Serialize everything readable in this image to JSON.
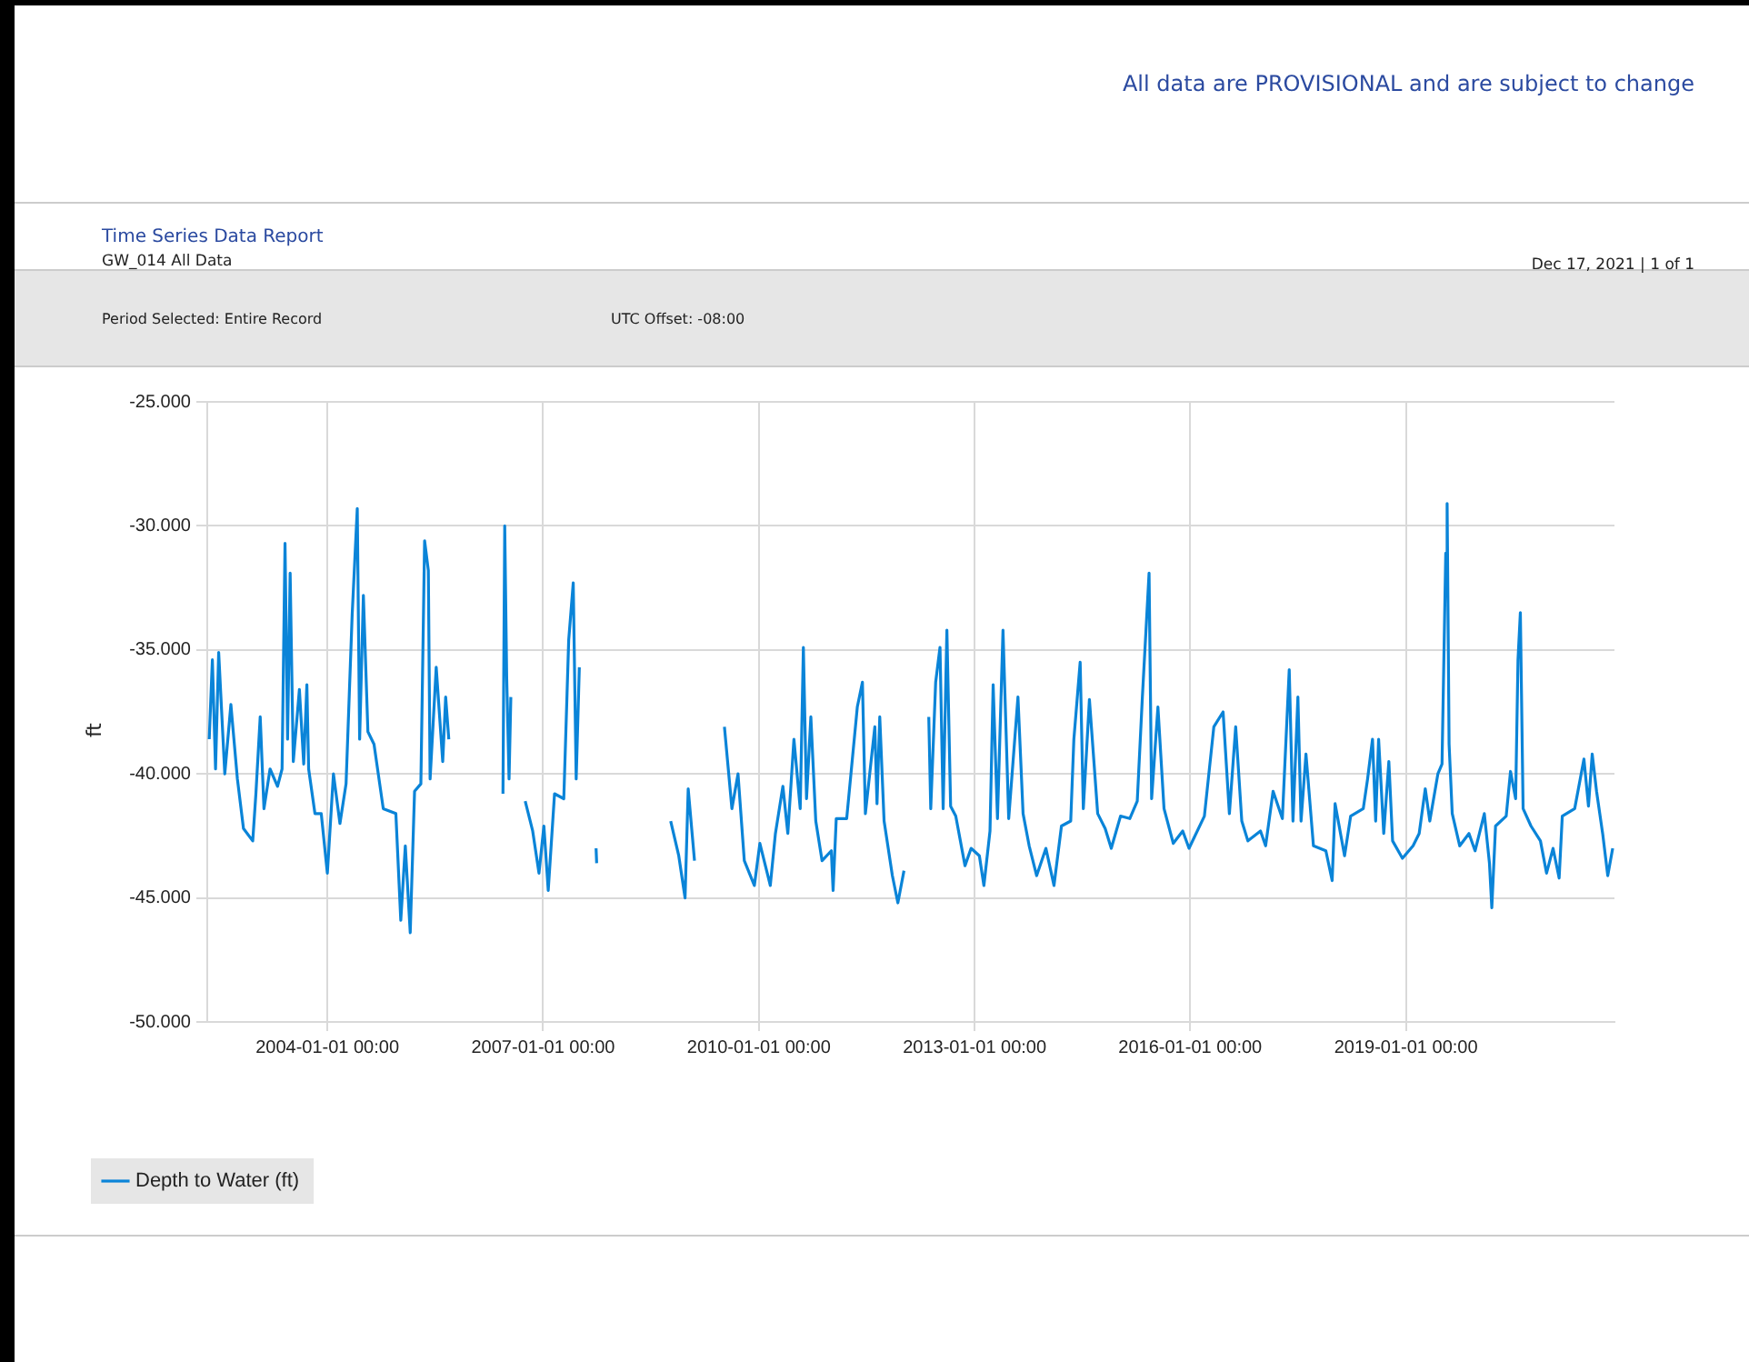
{
  "chart_data": {
    "type": "line",
    "title": "Time Series Data Report",
    "subtitle": "GW_014 All Data",
    "ylabel": "ft",
    "annotations": [
      "All data are PROVISIONAL and are subject to change",
      "Dec 17, 2021 | 1 of 1",
      "Period Selected: Entire Record",
      "UTC Offset: -08:00"
    ],
    "x": [
      "2002-05-11",
      "2002-05-27",
      "2002-06-12",
      "2002-06-28",
      "2002-07-29",
      "2002-08-29",
      "2002-10-01",
      "2002-11-01",
      "2002-12-18",
      "2003-01-03",
      "2003-01-25",
      "2003-02-13",
      "2003-03-16",
      "2003-04-23",
      "2003-05-16",
      "2003-05-31",
      "2003-06-13",
      "2003-06-26",
      "2003-07-12",
      "2003-08-12",
      "2003-09-03",
      "2003-09-19",
      "2003-09-28",
      "2003-10-30",
      "2003-12-01",
      "2004-01-01",
      "2004-02-01",
      "2004-03-05",
      "2004-04-05",
      "2004-05-06",
      "2004-06-01",
      "2004-06-13",
      "2004-07-02",
      "2004-07-25",
      "2004-08-25",
      "2004-10-11",
      "2004-12-14",
      "2005-01-08",
      "2005-01-31",
      "2005-02-25",
      "2005-03-19",
      "2005-04-20",
      "2005-05-09",
      "2005-05-28",
      "2005-06-06",
      "2005-07-07",
      "2005-08-09",
      "2005-08-24",
      "2005-09-09",
      "2006-01-01",
      "2006-06-11",
      "2006-06-20",
      "2006-06-30",
      "2006-07-12",
      "2006-07-21",
      "2006-08-20",
      "2006-10-02",
      "2006-11-09",
      "2006-12-11",
      "2007-01-05",
      "2007-01-27",
      "2007-02-28",
      "2007-04-16",
      "2007-05-11",
      "2007-06-03",
      "2007-06-18",
      "2007-07-04",
      "2007-08-15",
      "2007-09-27",
      "2007-09-30",
      "2008-03-01",
      "2008-10-10",
      "2008-11-20",
      "2008-12-22",
      "2009-01-07",
      "2009-02-08",
      "2009-04-15",
      "2009-07-10",
      "2009-08-17",
      "2009-09-17",
      "2009-10-19",
      "2009-12-09",
      "2010-01-06",
      "2010-02-28",
      "2010-03-26",
      "2010-05-03",
      "2010-05-28",
      "2010-06-28",
      "2010-07-30",
      "2010-08-15",
      "2010-08-31",
      "2010-09-22",
      "2010-10-17",
      "2010-11-18",
      "2011-01-04",
      "2011-01-13",
      "2011-01-29",
      "2011-03-23",
      "2011-05-16",
      "2011-06-11",
      "2011-06-26",
      "2011-08-13",
      "2011-08-24",
      "2011-09-07",
      "2011-09-29",
      "2011-11-10",
      "2011-12-08",
      "2012-01-08",
      "2012-03-15",
      "2012-05-13",
      "2012-05-23",
      "2012-06-17",
      "2012-07-09",
      "2012-07-25",
      "2012-08-13",
      "2012-09-01",
      "2012-09-27",
      "2012-11-13",
      "2012-12-14",
      "2013-01-25",
      "2013-02-17",
      "2013-03-20",
      "2013-04-05",
      "2013-04-27",
      "2013-05-25",
      "2013-06-23",
      "2013-08-09",
      "2013-09-04",
      "2013-10-05",
      "2013-11-12",
      "2013-12-29",
      "2014-02-08",
      "2014-03-18",
      "2014-05-04",
      "2014-05-20",
      "2014-06-21",
      "2014-07-07",
      "2014-08-07",
      "2014-09-18",
      "2014-10-26",
      "2014-11-26",
      "2015-01-12",
      "2015-02-28",
      "2015-04-07",
      "2015-05-03",
      "2015-06-06",
      "2015-06-19",
      "2015-07-21",
      "2015-08-21",
      "2015-10-07",
      "2015-11-24",
      "2015-12-26",
      "2016-03-13",
      "2016-04-30",
      "2016-06-16",
      "2016-07-18",
      "2016-08-19",
      "2016-09-19",
      "2016-10-20",
      "2016-12-23",
      "2017-01-18",
      "2017-02-25",
      "2017-04-13",
      "2017-05-18",
      "2017-06-06",
      "2017-07-01",
      "2017-07-17",
      "2017-08-11",
      "2017-09-18",
      "2017-11-20",
      "2017-12-22",
      "2018-01-06",
      "2018-02-23",
      "2018-03-26",
      "2018-05-29",
      "2018-06-20",
      "2018-07-15",
      "2018-07-31",
      "2018-08-15",
      "2018-09-10",
      "2018-10-06",
      "2018-10-25",
      "2018-12-14",
      "2019-02-06",
      "2019-03-09",
      "2019-04-09",
      "2019-05-02",
      "2019-06-12",
      "2019-07-03",
      "2019-07-22",
      "2019-07-29",
      "2019-08-08",
      "2019-08-24",
      "2019-10-01",
      "2019-11-17",
      "2019-12-18",
      "2020-02-03",
      "2020-02-29",
      "2020-03-12",
      "2020-03-31",
      "2020-05-24",
      "2020-06-15",
      "2020-07-11",
      "2020-07-23",
      "2020-08-04",
      "2020-08-18",
      "2020-09-27",
      "2020-11-14",
      "2020-12-15",
      "2021-01-17",
      "2021-02-17",
      "2021-03-05",
      "2021-05-07",
      "2021-06-23",
      "2021-07-16",
      "2021-08-04",
      "2021-08-26",
      "2021-09-26",
      "2021-10-22",
      "2021-11-16"
    ],
    "series": [
      {
        "name": "Depth to Water (ft)",
        "color": "#0a84d8",
        "values": [
          -38.6,
          -35.4,
          -39.8,
          -35.1,
          -40.0,
          -37.2,
          -40.2,
          -42.2,
          -42.7,
          -40.8,
          -37.7,
          -41.4,
          -39.8,
          -40.5,
          -39.8,
          -30.7,
          -38.6,
          -31.9,
          -39.5,
          -36.6,
          -39.6,
          -36.4,
          -39.8,
          -41.6,
          -41.6,
          -44.0,
          -40.0,
          -42.0,
          -40.4,
          -33.6,
          -29.3,
          -38.6,
          -32.8,
          -38.3,
          -38.8,
          -41.4,
          -41.6,
          -45.9,
          -42.9,
          -46.4,
          -40.7,
          -40.4,
          -30.6,
          -31.8,
          -40.2,
          -35.7,
          -39.5,
          -36.9,
          -38.6,
          null,
          -40.8,
          -30.0,
          -36.1,
          -40.2,
          -36.9,
          null,
          -41.1,
          -42.3,
          -44.0,
          -42.1,
          -44.7,
          -40.8,
          -41.0,
          -34.6,
          -32.3,
          -40.2,
          -35.7,
          null,
          -43.0,
          -43.6,
          null,
          -41.9,
          -43.3,
          -45.0,
          -40.6,
          -43.5,
          null,
          -38.1,
          -41.4,
          -40.0,
          -43.5,
          -44.5,
          -42.8,
          -44.5,
          -42.4,
          -40.5,
          -42.4,
          -38.6,
          -41.4,
          -34.9,
          -41.0,
          -37.7,
          -41.9,
          -43.5,
          -43.1,
          -44.7,
          -41.8,
          -41.8,
          -37.3,
          -36.3,
          -41.6,
          -38.1,
          -41.2,
          -37.7,
          -41.9,
          -44.1,
          -45.2,
          -43.9,
          null,
          -37.7,
          -41.4,
          -36.3,
          -34.9,
          -41.4,
          -34.2,
          -41.3,
          -41.7,
          -43.7,
          -43.0,
          -43.3,
          -44.5,
          -42.3,
          -36.4,
          -41.8,
          -34.2,
          -41.8,
          -36.9,
          -41.6,
          -42.9,
          -44.1,
          -43.0,
          -44.5,
          -42.1,
          -41.9,
          -38.6,
          -35.5,
          -41.4,
          -37.0,
          -41.6,
          -42.2,
          -43.0,
          -41.7,
          -41.8,
          -41.1,
          -36.9,
          -31.9,
          -41.0,
          -37.3,
          -41.4,
          -42.8,
          -42.3,
          -43.0,
          -41.7,
          -38.1,
          -37.5,
          -41.6,
          -38.1,
          -41.9,
          -42.7,
          -42.3,
          -42.9,
          -40.7,
          -41.8,
          -35.8,
          -41.9,
          -36.9,
          -41.9,
          -39.2,
          -42.9,
          -43.1,
          -44.3,
          -41.2,
          -43.3,
          -41.7,
          -41.4,
          -40.2,
          -38.6,
          -41.9,
          -38.6,
          -42.4,
          -39.5,
          -42.7,
          -43.4,
          -42.9,
          -42.4,
          -40.6,
          -41.9,
          -40.0,
          -39.6,
          -31.1,
          -29.1,
          -38.8,
          -41.6,
          -42.9,
          -42.4,
          -43.1,
          -41.6,
          -43.6,
          -45.4,
          -42.1,
          -41.7,
          -39.9,
          -41.0,
          -35.4,
          -33.5,
          -41.4,
          -42.1,
          -42.7,
          -44.0,
          -43.0,
          -44.2,
          -41.7,
          -41.4,
          -39.4,
          -41.3,
          -39.2,
          -40.7,
          -42.4,
          -44.1,
          -43.0
        ]
      }
    ],
    "xlim": [
      "2002-05-01",
      "2021-11-25"
    ],
    "xticks": [
      {
        "value": "2004-01-01",
        "label": "2004-01-01 00:00"
      },
      {
        "value": "2007-01-01",
        "label": "2007-01-01 00:00"
      },
      {
        "value": "2010-01-01",
        "label": "2010-01-01 00:00"
      },
      {
        "value": "2013-01-01",
        "label": "2013-01-01 00:00"
      },
      {
        "value": "2016-01-01",
        "label": "2016-01-01 00:00"
      },
      {
        "value": "2019-01-01",
        "label": "2019-01-01 00:00"
      }
    ],
    "ylim": [
      -50,
      -25
    ],
    "yticks": [
      {
        "value": -50,
        "label": "-50.000"
      },
      {
        "value": -45,
        "label": "-45.000"
      },
      {
        "value": -40,
        "label": "-40.000"
      },
      {
        "value": -35,
        "label": "-35.000"
      },
      {
        "value": -30,
        "label": "-30.000"
      },
      {
        "value": -25,
        "label": "-25.000"
      }
    ],
    "grid": true,
    "legend": "bottom left"
  }
}
